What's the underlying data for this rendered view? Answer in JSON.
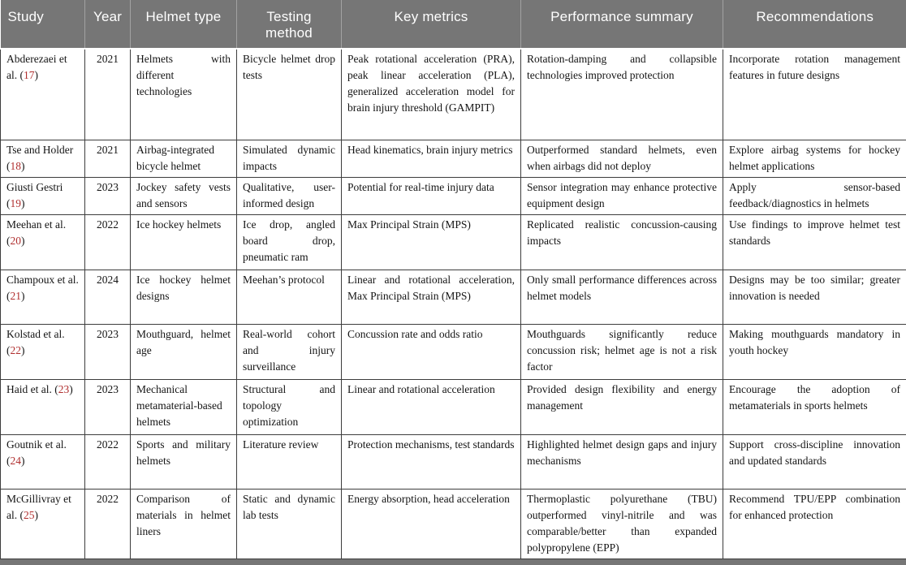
{
  "table": {
    "colors": {
      "header_bg": "#767676",
      "header_text": "#ffffff",
      "border": "#3d3d3d",
      "ref": "#b02f2f"
    },
    "columns": [
      {
        "key": "study",
        "label": "Study"
      },
      {
        "key": "year",
        "label": "Year"
      },
      {
        "key": "helmet_type",
        "label": "Helmet type"
      },
      {
        "key": "testing_method",
        "label": "Testing method"
      },
      {
        "key": "key_metrics",
        "label": "Key metrics"
      },
      {
        "key": "performance_summary",
        "label": "Performance summary"
      },
      {
        "key": "recommendations",
        "label": "Recommendations"
      }
    ],
    "rows": [
      {
        "study": "Abderezaei et al.",
        "ref": "17",
        "year": "2021",
        "helmet_type": "Helmets with different technologies",
        "testing_method": "Bicycle helmet drop tests",
        "key_metrics": "Peak rotational acceleration (PRA), peak linear acceleration (PLA), generalized acceleration model for brain injury threshold (GAMPIT)",
        "performance_summary": "Rotation-damping and collapsible technologies improved protection",
        "recommendations": "Incorporate rotation management features in future designs"
      },
      {
        "study": "Tse and Holder",
        "ref": "18",
        "year": "2021",
        "helmet_type": "Airbag-integrated bicycle helmet",
        "testing_method": "Simulated dynamic impacts",
        "key_metrics": "Head kinematics, brain injury metrics",
        "performance_summary": "Outperformed standard helmets, even when airbags did not deploy",
        "recommendations": "Explore airbag systems for hockey helmet applications"
      },
      {
        "study": "Giusti Gestri",
        "ref": "19",
        "year": "2023",
        "helmet_type": "Jockey safety vests and sensors",
        "testing_method": "Qualitative, user-informed design",
        "key_metrics": "Potential for real-time injury data",
        "performance_summary": "Sensor integration may enhance protective equipment design",
        "recommendations": "Apply sensor-based feedback/diagnostics in helmets"
      },
      {
        "study": "Meehan et al.",
        "ref": "20",
        "year": "2022",
        "helmet_type": "Ice hockey helmets",
        "testing_method": "Ice drop, angled board drop, pneumatic ram",
        "key_metrics": "Max Principal Strain (MPS)",
        "performance_summary": "Replicated realistic concussion-causing impacts",
        "recommendations": "Use findings to improve helmet test standards"
      },
      {
        "study": "Champoux et al.",
        "ref": "21",
        "year": "2024",
        "helmet_type": "Ice hockey helmet designs",
        "testing_method": "Meehan’s protocol",
        "key_metrics": "Linear and rotational acceleration, Max Principal Strain (MPS)",
        "performance_summary": "Only small performance differences across helmet models",
        "recommendations": "Designs may be too similar; greater innovation is needed"
      },
      {
        "study": "Kolstad et al.",
        "ref": "22",
        "year": "2023",
        "helmet_type": "Mouthguard, helmet age",
        "testing_method": "Real-world cohort and injury surveillance",
        "key_metrics": "Concussion rate and odds ratio",
        "performance_summary": "Mouthguards significantly reduce concussion risk; helmet age is not a risk factor",
        "recommendations": "Making mouthguards mandatory in youth hockey"
      },
      {
        "study": "Haid et al.",
        "ref": "23",
        "year": "2023",
        "helmet_type": "Mechanical metamaterial-based helmets",
        "testing_method": "Structural and topology optimization",
        "key_metrics": "Linear and rotational acceleration",
        "performance_summary": "Provided design flexibility and energy management",
        "recommendations": "Encourage the adoption of metamaterials in sports helmets"
      },
      {
        "study": "Goutnik et al.",
        "ref": "24",
        "year": "2022",
        "helmet_type": "Sports and military helmets",
        "testing_method": "Literature review",
        "key_metrics": "Protection mechanisms, test standards",
        "performance_summary": "Highlighted helmet design gaps and injury mechanisms",
        "recommendations": "Support cross-discipline innovation and updated standards"
      },
      {
        "study": "McGillivray et al.",
        "ref": "25",
        "year": "2022",
        "helmet_type": "Comparison of materials in helmet liners",
        "testing_method": "Static and dynamic lab tests",
        "key_metrics": "Energy absorption, head acceleration",
        "performance_summary": "Thermoplastic polyurethane (TBU) outperformed vinyl-nitrile and was comparable/better than expanded polypropylene (EPP)",
        "recommendations": "Recommend TPU/EPP combination for enhanced protection"
      }
    ]
  }
}
